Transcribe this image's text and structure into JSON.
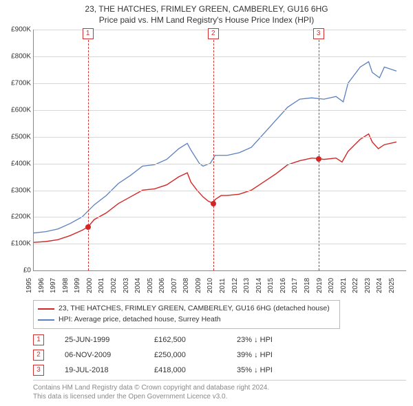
{
  "title": {
    "line1": "23, THE HATCHES, FRIMLEY GREEN, CAMBERLEY, GU16 6HG",
    "line2": "Price paid vs. HM Land Registry's House Price Index (HPI)"
  },
  "chart": {
    "type": "line",
    "background_color": "#ffffff",
    "grid_color": "#d7d7d7",
    "axis_color": "#888888",
    "x": {
      "min": 1995,
      "max": 2025.8,
      "ticks": [
        1995,
        1996,
        1997,
        1998,
        1999,
        2000,
        2001,
        2002,
        2003,
        2004,
        2005,
        2006,
        2007,
        2008,
        2009,
        2010,
        2011,
        2012,
        2013,
        2014,
        2015,
        2016,
        2017,
        2018,
        2019,
        2020,
        2021,
        2022,
        2023,
        2024,
        2025
      ]
    },
    "y": {
      "min": 0,
      "max": 900000,
      "tick_step": 100000,
      "tick_labels": [
        "£0",
        "£100K",
        "£200K",
        "£300K",
        "£400K",
        "£500K",
        "£600K",
        "£700K",
        "£800K",
        "£900K"
      ]
    },
    "series": [
      {
        "name": "property",
        "legend": "23, THE HATCHES, FRIMLEY GREEN, CAMBERLEY, GU16 6HG (detached house)",
        "color": "#d22626",
        "width": 1.4,
        "data": [
          [
            1995,
            105000
          ],
          [
            1996,
            108000
          ],
          [
            1997,
            115000
          ],
          [
            1998,
            130000
          ],
          [
            1999,
            150000
          ],
          [
            1999.48,
            162500
          ],
          [
            2000,
            190000
          ],
          [
            2001,
            215000
          ],
          [
            2002,
            250000
          ],
          [
            2003,
            275000
          ],
          [
            2004,
            300000
          ],
          [
            2005,
            305000
          ],
          [
            2006,
            320000
          ],
          [
            2007,
            350000
          ],
          [
            2007.7,
            365000
          ],
          [
            2008,
            330000
          ],
          [
            2008.5,
            300000
          ],
          [
            2009,
            275000
          ],
          [
            2009.4,
            260000
          ],
          [
            2009.85,
            250000
          ],
          [
            2010,
            265000
          ],
          [
            2010.5,
            280000
          ],
          [
            2011,
            280000
          ],
          [
            2012,
            285000
          ],
          [
            2013,
            300000
          ],
          [
            2014,
            330000
          ],
          [
            2015,
            360000
          ],
          [
            2016,
            395000
          ],
          [
            2017,
            410000
          ],
          [
            2018,
            420000
          ],
          [
            2018.55,
            418000
          ],
          [
            2019,
            415000
          ],
          [
            2020,
            420000
          ],
          [
            2020.5,
            405000
          ],
          [
            2021,
            445000
          ],
          [
            2022,
            490000
          ],
          [
            2022.7,
            510000
          ],
          [
            2023,
            480000
          ],
          [
            2023.5,
            455000
          ],
          [
            2024,
            470000
          ],
          [
            2025,
            480000
          ]
        ]
      },
      {
        "name": "hpi",
        "legend": "HPI: Average price, detached house, Surrey Heath",
        "color": "#5b7fbf",
        "width": 1.3,
        "data": [
          [
            1995,
            140000
          ],
          [
            1996,
            145000
          ],
          [
            1997,
            155000
          ],
          [
            1998,
            175000
          ],
          [
            1999,
            200000
          ],
          [
            2000,
            245000
          ],
          [
            2001,
            280000
          ],
          [
            2002,
            325000
          ],
          [
            2003,
            355000
          ],
          [
            2004,
            390000
          ],
          [
            2005,
            395000
          ],
          [
            2006,
            415000
          ],
          [
            2007,
            455000
          ],
          [
            2007.7,
            475000
          ],
          [
            2008,
            450000
          ],
          [
            2008.7,
            400000
          ],
          [
            2009,
            390000
          ],
          [
            2009.6,
            400000
          ],
          [
            2010,
            430000
          ],
          [
            2011,
            430000
          ],
          [
            2012,
            440000
          ],
          [
            2013,
            460000
          ],
          [
            2014,
            510000
          ],
          [
            2015,
            560000
          ],
          [
            2016,
            610000
          ],
          [
            2017,
            640000
          ],
          [
            2018,
            645000
          ],
          [
            2019,
            640000
          ],
          [
            2020,
            650000
          ],
          [
            2020.6,
            630000
          ],
          [
            2021,
            700000
          ],
          [
            2022,
            760000
          ],
          [
            2022.7,
            780000
          ],
          [
            2023,
            740000
          ],
          [
            2023.6,
            720000
          ],
          [
            2024,
            760000
          ],
          [
            2025,
            745000
          ]
        ]
      }
    ],
    "events": [
      {
        "num": "1",
        "x": 1999.48,
        "date": "25-JUN-1999",
        "price": "£162,500",
        "delta": "23% ↓ HPI",
        "dot_y": 162500
      },
      {
        "num": "2",
        "x": 2009.85,
        "date": "06-NOV-2009",
        "price": "£250,000",
        "delta": "39% ↓ HPI",
        "dot_y": 250000
      },
      {
        "num": "3",
        "x": 2018.55,
        "date": "19-JUL-2018",
        "price": "£418,000",
        "delta": "35% ↓ HPI",
        "dot_y": 418000
      }
    ],
    "event_line_color": "#d03030"
  },
  "footer": {
    "line1": "Contains HM Land Registry data © Crown copyright and database right 2024.",
    "line2": "This data is licensed under the Open Government Licence v3.0."
  }
}
